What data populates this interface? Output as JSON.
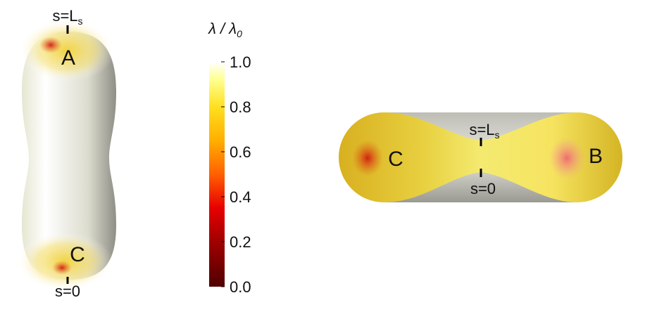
{
  "left_shape": {
    "top_label": {
      "main": "s=L",
      "sub": "s"
    },
    "bottom_label": "s=0",
    "points": [
      "A",
      "C"
    ]
  },
  "colorbar": {
    "label": {
      "main": "λ / λ",
      "sub": "0"
    },
    "ylim": [
      0,
      1
    ],
    "yticks": [
      {
        "value": 0,
        "label": "0.0"
      },
      {
        "value": 0.2,
        "label": "0.2"
      },
      {
        "value": 0.4,
        "label": "0.4"
      },
      {
        "value": 0.6,
        "label": "0.6"
      },
      {
        "value": 0.8,
        "label": "0.8"
      },
      {
        "value": 1,
        "label": "1.0"
      }
    ]
  },
  "right_shape": {
    "top_label": {
      "main": "s=L",
      "sub": "s"
    },
    "bottom_label": "s=0",
    "points": [
      "C",
      "B"
    ]
  }
}
